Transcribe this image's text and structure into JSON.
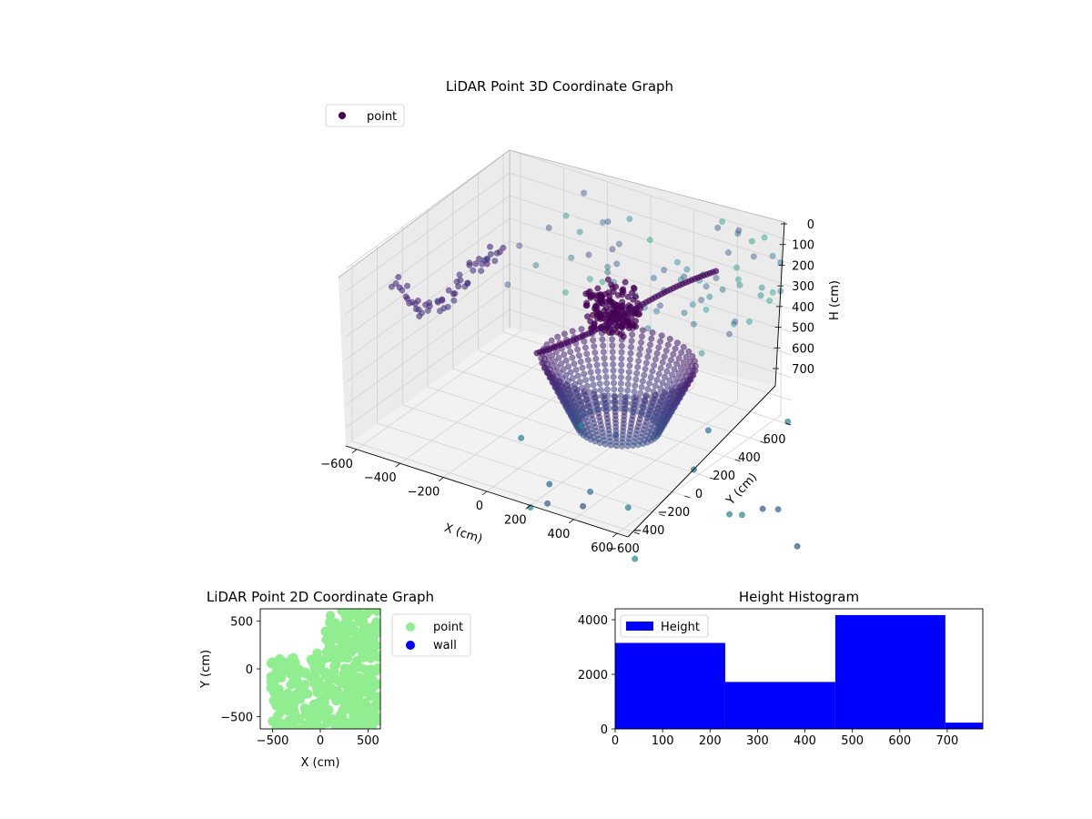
{
  "chart_data": [
    {
      "type": "scatter",
      "projection": "3d",
      "title": "LiDAR Point 3D Coordinate Graph",
      "xlabel": "X (cm)",
      "ylabel": "Y (cm)",
      "zlabel": "H (cm)",
      "xlim": [
        -650,
        650
      ],
      "ylim": [
        -650,
        650
      ],
      "zlim": [
        780,
        0
      ],
      "xticks": [
        "−600",
        "−400",
        "−200",
        "0",
        "200",
        "400",
        "600"
      ],
      "yticks": [
        "−600",
        "−400",
        "−200",
        "0",
        "200",
        "400",
        "600"
      ],
      "zticks": [
        "0",
        "100",
        "200",
        "300",
        "400",
        "500",
        "600",
        "700"
      ],
      "grid": true,
      "legend": {
        "position": "top-left",
        "entries": [
          {
            "label": "point",
            "color": "#440154"
          }
        ]
      },
      "colormap": "viridis"
    },
    {
      "type": "scatter",
      "title": "LiDAR Point 2D Coordinate Graph",
      "xlabel": "X (cm)",
      "ylabel": "Y (cm)",
      "xlim": [
        -630,
        630
      ],
      "ylim": [
        -630,
        630
      ],
      "xticks": [
        "−500",
        "0",
        "500"
      ],
      "yticks": [
        "−500",
        "0",
        "500"
      ],
      "legend": {
        "position": "outside-right",
        "entries": [
          {
            "label": "point",
            "color": "#90ee90"
          },
          {
            "label": "wall",
            "color": "#0000ff"
          }
        ]
      }
    },
    {
      "type": "bar",
      "title": "Height Histogram",
      "xlim": [
        0,
        775
      ],
      "ylim": [
        0,
        4400
      ],
      "xticks": [
        "0",
        "100",
        "200",
        "300",
        "400",
        "500",
        "600",
        "700"
      ],
      "yticks": [
        "0",
        "2000",
        "4000"
      ],
      "legend": {
        "position": "top-left",
        "entries": [
          {
            "label": "Height",
            "color": "#0000ff"
          }
        ]
      },
      "bins": [
        {
          "x0": 0,
          "x1": 232,
          "count": 3150
        },
        {
          "x0": 232,
          "x1": 464,
          "count": 1720
        },
        {
          "x0": 464,
          "x1": 696,
          "count": 4170
        },
        {
          "x0": 696,
          "x1": 775,
          "count": 230
        }
      ],
      "bar_color": "#0000ff"
    }
  ]
}
